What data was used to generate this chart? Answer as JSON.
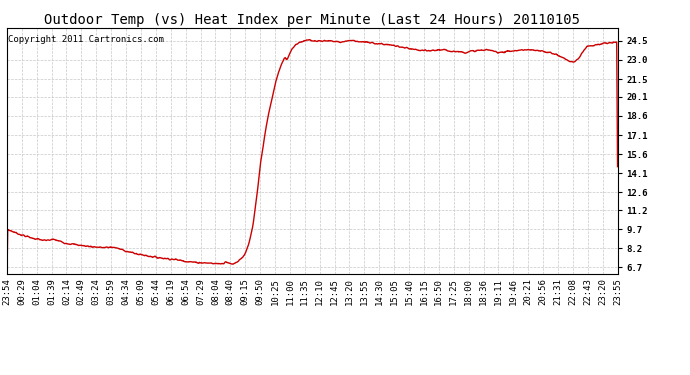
{
  "title": "Outdoor Temp (vs) Heat Index per Minute (Last 24 Hours) 20110105",
  "copyright": "Copyright 2011 Cartronics.com",
  "line_color": "#cc0000",
  "bg_color": "#ffffff",
  "plot_bg_color": "#ffffff",
  "grid_color": "#c8c8c8",
  "yticks": [
    6.7,
    8.2,
    9.7,
    11.2,
    12.6,
    14.1,
    15.6,
    17.1,
    18.6,
    20.1,
    21.5,
    23.0,
    24.5
  ],
  "xtick_labels": [
    "23:54",
    "00:29",
    "01:04",
    "01:39",
    "02:14",
    "02:49",
    "03:24",
    "03:59",
    "04:34",
    "05:09",
    "05:44",
    "06:19",
    "06:54",
    "07:29",
    "08:04",
    "08:40",
    "09:15",
    "09:50",
    "10:25",
    "11:00",
    "11:35",
    "12:10",
    "12:45",
    "13:20",
    "13:55",
    "14:30",
    "15:05",
    "15:40",
    "16:15",
    "16:50",
    "17:25",
    "18:00",
    "18:36",
    "19:11",
    "19:46",
    "20:21",
    "20:56",
    "21:31",
    "22:08",
    "22:43",
    "23:20",
    "23:55"
  ],
  "ylim": [
    6.2,
    25.5
  ],
  "title_fontsize": 10,
  "copyright_fontsize": 6.5,
  "tick_fontsize": 6.5,
  "line_width": 1.0
}
